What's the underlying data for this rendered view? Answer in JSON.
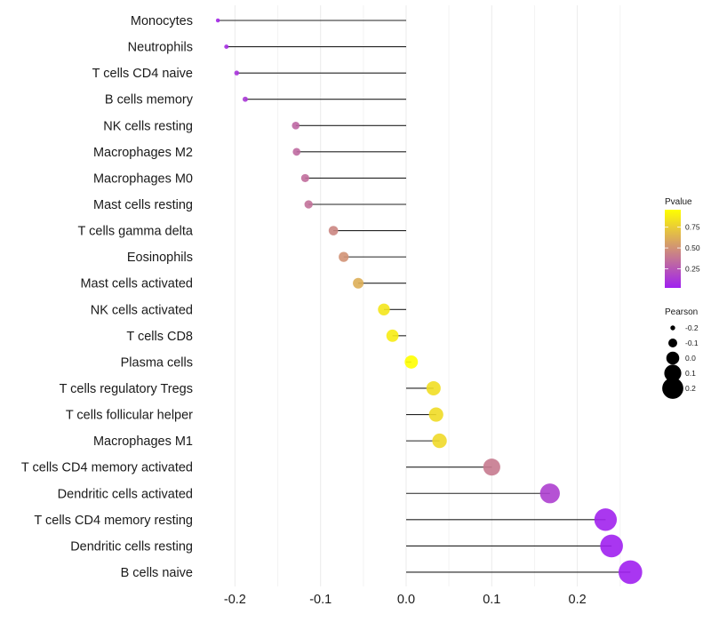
{
  "chart_data": {
    "type": "lollipop",
    "title": "",
    "xlabel": "",
    "ylabel": "",
    "xlim": [
      -0.235,
      0.275
    ],
    "x_ticks": [
      -0.2,
      -0.1,
      0.0,
      0.1,
      0.2
    ],
    "x_tick_labels": [
      "-0.2",
      "-0.1",
      "0.0",
      "0.1",
      "0.2"
    ],
    "grid": true,
    "categories": [
      "Monocytes",
      "Neutrophils",
      "T cells CD4 naive",
      "B cells memory",
      "NK cells resting",
      "Macrophages M2",
      "Macrophages M0",
      "Mast cells resting",
      "T cells gamma delta",
      "Eosinophils",
      "Mast cells activated",
      "NK cells activated",
      "T cells CD8",
      "Plasma cells",
      "T cells regulatory  Tregs ",
      "T cells follicular helper",
      "Macrophages M1",
      "T cells CD4 memory activated",
      "Dendritic cells activated",
      "T cells CD4 memory resting",
      "Dendritic cells resting",
      "B cells naive"
    ],
    "series": [
      {
        "name": "Pearson",
        "values": [
          -0.22,
          -0.21,
          -0.198,
          -0.188,
          -0.129,
          -0.128,
          -0.118,
          -0.114,
          -0.085,
          -0.073,
          -0.056,
          -0.026,
          -0.016,
          0.006,
          0.032,
          0.035,
          0.039,
          0.1,
          0.168,
          0.233,
          0.24,
          0.262
        ]
      },
      {
        "name": "Pvalue",
        "values": [
          0.05,
          0.07,
          0.1,
          0.12,
          0.32,
          0.33,
          0.35,
          0.36,
          0.45,
          0.5,
          0.62,
          0.85,
          0.88,
          0.96,
          0.82,
          0.81,
          0.8,
          0.4,
          0.15,
          0.03,
          0.02,
          0.02
        ]
      }
    ],
    "legend": {
      "placement": "right",
      "color": {
        "title": "Pvalue",
        "range": [
          0.02,
          0.96
        ],
        "ticks": [
          0.25,
          0.5,
          0.75
        ],
        "tick_labels": [
          "0.25",
          "0.50",
          "0.75"
        ],
        "low_color": "#A020F0",
        "high_color": "#FFFF00"
      },
      "size": {
        "title": "Pearson",
        "values": [
          -0.2,
          -0.1,
          0.0,
          0.1,
          0.2
        ],
        "labels": [
          "-0.2",
          "-0.1",
          "0.0",
          "0.1",
          "0.2"
        ]
      }
    }
  }
}
